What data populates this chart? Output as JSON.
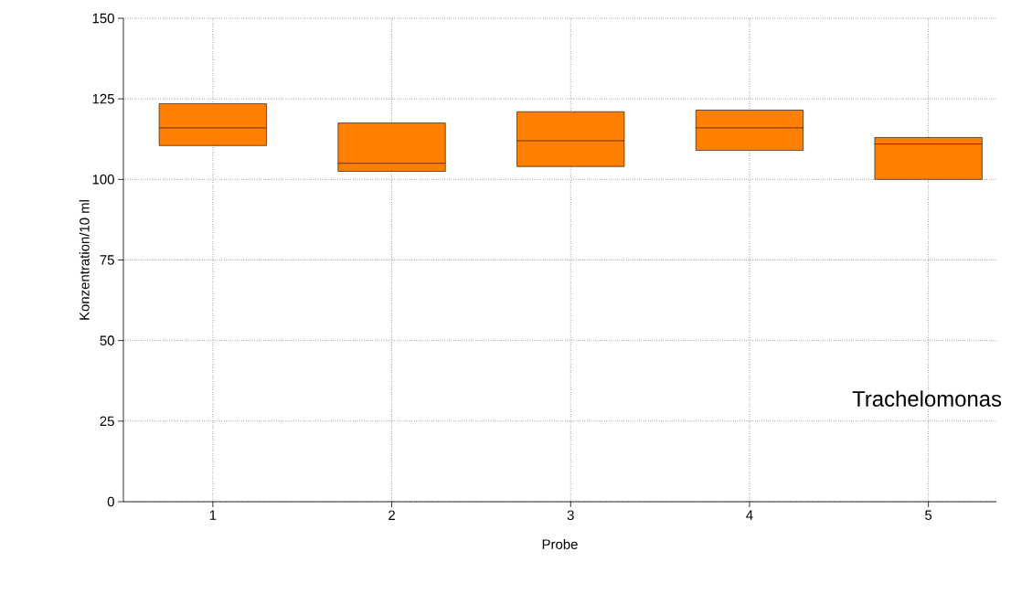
{
  "chart_data": {
    "type": "box",
    "xlabel": "Probe",
    "ylabel": "Konzentration/10 ml",
    "categories": [
      "1",
      "2",
      "3",
      "4",
      "5"
    ],
    "boxes": [
      {
        "low": 110.5,
        "q1": 110.5,
        "median": 116,
        "q3": 123.5,
        "high": 123.5
      },
      {
        "low": 102.5,
        "q1": 102.5,
        "median": 105,
        "q3": 117.5,
        "high": 117.5
      },
      {
        "low": 104,
        "q1": 104,
        "median": 112,
        "q3": 121,
        "high": 121
      },
      {
        "low": 109,
        "q1": 109,
        "median": 116,
        "q3": 121.5,
        "high": 121.5
      },
      {
        "low": 100,
        "q1": 100,
        "median": 111,
        "q3": 113,
        "high": 113
      }
    ],
    "color": "#ff8000",
    "ylim": [
      0,
      150
    ],
    "yticks": [
      0,
      25,
      50,
      75,
      100,
      125,
      150
    ],
    "grid": true,
    "annotations": [
      "Trachelomonas"
    ]
  }
}
